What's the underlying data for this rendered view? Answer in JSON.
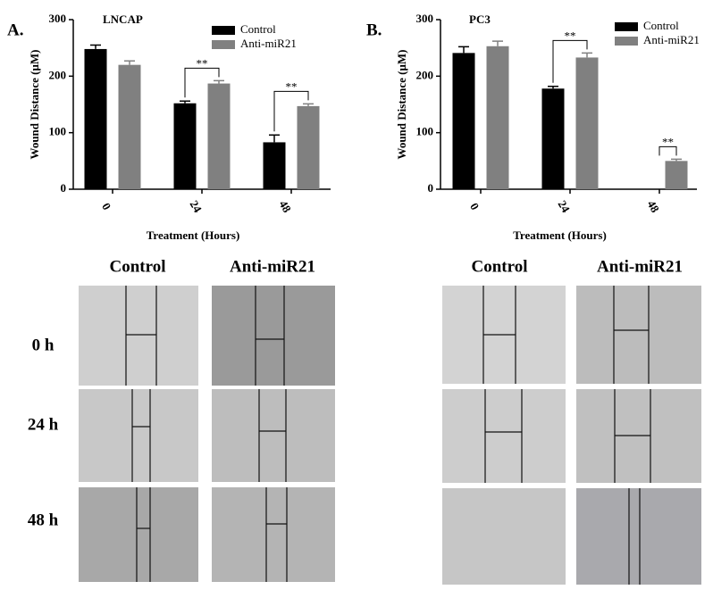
{
  "chart_data": [
    {
      "type": "bar",
      "panel": "A.",
      "title": "LNCAP",
      "y_label": "Wound Distance (μM)",
      "x_label": "Treatment (Hours)",
      "categories": [
        "0",
        "24",
        "48"
      ],
      "series": [
        {
          "name": "Control",
          "color": "#000000",
          "values": [
            248,
            152,
            83
          ],
          "errors": [
            7,
            4,
            13
          ]
        },
        {
          "name": "Anti-miR21",
          "color": "#808080",
          "values": [
            220,
            187,
            147
          ],
          "errors": [
            7,
            5,
            4
          ]
        }
      ],
      "significance": [
        null,
        "**",
        "**"
      ],
      "ylim": [
        0,
        300
      ],
      "yticks": [
        0,
        100,
        200,
        300
      ]
    },
    {
      "type": "bar",
      "panel": "B.",
      "title": "PC3",
      "y_label": "Wound Distance (μM)",
      "x_label": "Treatment (Hours)",
      "categories": [
        "0",
        "24",
        "48"
      ],
      "series": [
        {
          "name": "Control",
          "color": "#000000",
          "values": [
            241,
            178,
            null
          ],
          "errors": [
            11,
            4,
            null
          ]
        },
        {
          "name": "Anti-miR21",
          "color": "#808080",
          "values": [
            253,
            233,
            50
          ],
          "errors": [
            9,
            8,
            3
          ]
        }
      ],
      "significance": [
        null,
        "**",
        "**"
      ],
      "ylim": [
        0,
        300
      ],
      "yticks": [
        0,
        100,
        200,
        300
      ]
    }
  ],
  "micrographs": [
    {
      "columns": [
        "Control",
        "Anti-miR21"
      ],
      "rows": [
        "0 h",
        "24 h",
        "48 h"
      ]
    },
    {
      "columns": [
        "Control",
        "Anti-miR21"
      ]
    }
  ]
}
